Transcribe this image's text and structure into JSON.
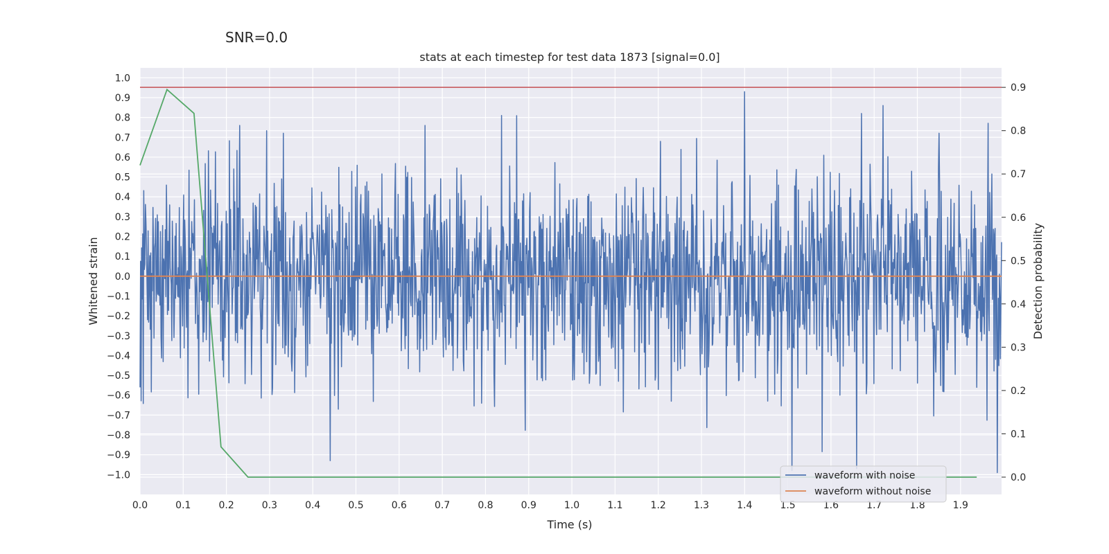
{
  "suptitle": "SNR=0.0",
  "chart_data": {
    "type": "line",
    "title": "stats at each timestep for test data 1873 [signal=0.0]",
    "xlabel": "Time (s)",
    "ylabel": "Whitened strain",
    "y2label": "Detection probability",
    "xlim": [
      0.0,
      1.995
    ],
    "ylim": [
      -1.1,
      1.05
    ],
    "y2lim": [
      -0.04,
      0.945
    ],
    "x_ticks": [
      "0.0",
      "0.1",
      "0.2",
      "0.3",
      "0.4",
      "0.5",
      "0.6",
      "0.7",
      "0.8",
      "0.9",
      "1.0",
      "1.1",
      "1.2",
      "1.3",
      "1.4",
      "1.5",
      "1.6",
      "1.7",
      "1.8",
      "1.9"
    ],
    "y_ticks": [
      "1.0",
      "0.9",
      "0.8",
      "0.7",
      "0.6",
      "0.5",
      "0.4",
      "0.3",
      "0.2",
      "0.1",
      "0.0",
      "−0.1",
      "−0.2",
      "−0.3",
      "−0.4",
      "−0.5",
      "−0.6",
      "−0.7",
      "−0.8",
      "−0.9",
      "−1.0"
    ],
    "y2_ticks": [
      "0.9",
      "0.8",
      "0.7",
      "0.6",
      "0.5",
      "0.4",
      "0.3",
      "0.2",
      "0.1",
      "0.0"
    ],
    "grid": true,
    "legend_position": "lower-right",
    "series": [
      {
        "name": "waveform with noise",
        "axis": "left",
        "color": "#4c72b0",
        "render": "dense_noise",
        "x_range": [
          0.0,
          1.995
        ],
        "approx_range": [
          -1.0,
          0.93
        ],
        "peaks": [
          {
            "x": 1.4,
            "y": 0.93
          },
          {
            "x": 1.67,
            "y": 0.82
          },
          {
            "x": 1.72,
            "y": 0.86
          },
          {
            "x": 0.66,
            "y": 0.76
          },
          {
            "x": 1.51,
            "y": -0.98
          },
          {
            "x": 1.66,
            "y": -0.97
          },
          {
            "x": 1.985,
            "y": -0.99
          },
          {
            "x": 0.44,
            "y": -0.93
          }
        ]
      },
      {
        "name": "waveform without noise",
        "axis": "left",
        "color": "#dd8452",
        "x": [
          0.0,
          1.995
        ],
        "y": [
          0.0,
          0.0
        ]
      },
      {
        "name": "detection probability",
        "axis": "right",
        "color": "#55a868",
        "x": [
          0.0,
          0.0625,
          0.125,
          0.1875,
          0.25,
          0.3125,
          1.9375
        ],
        "y": [
          0.72,
          0.895,
          0.84,
          0.07,
          0.0,
          0.0,
          0.0
        ]
      },
      {
        "name": "threshold",
        "axis": "right",
        "color": "#c44e52",
        "x": [
          0.0,
          1.995
        ],
        "y": [
          0.9,
          0.9
        ]
      }
    ]
  }
}
